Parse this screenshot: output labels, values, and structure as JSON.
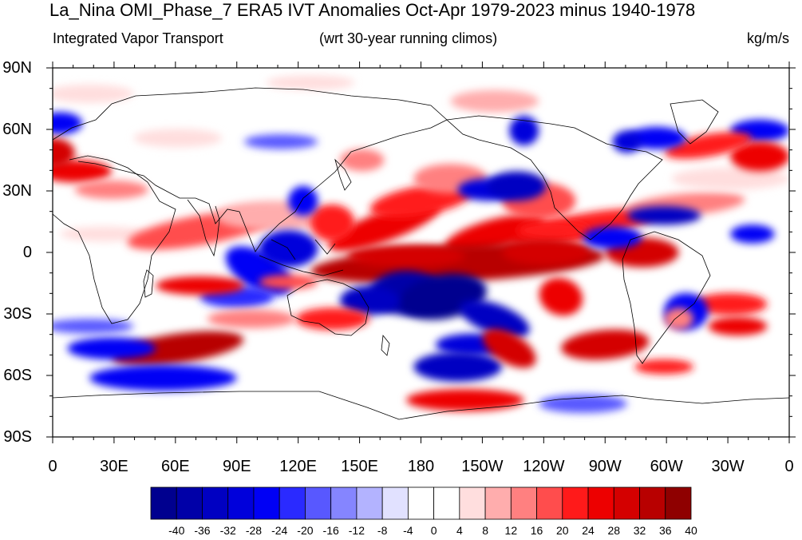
{
  "figure": {
    "title": "La_Nina OMI_Phase_7 ERA5 IVT Anomalies Oct-Apr 1979-2023 minus 1940-1978",
    "left_subtitle": "Integrated Vapor Transport",
    "center_subtitle": "(wrt 30-year running climos)",
    "right_subtitle": "kg/m/s"
  },
  "axes": {
    "y_ticks": [
      "90N",
      "60N",
      "30N",
      "0",
      "30S",
      "60S",
      "90S"
    ],
    "x_ticks": [
      "0",
      "30E",
      "60E",
      "90E",
      "120E",
      "150E",
      "180",
      "150W",
      "120W",
      "90W",
      "60W",
      "30W",
      "0"
    ]
  },
  "colorbar": {
    "labels": [
      "-40",
      "-36",
      "-32",
      "-28",
      "-24",
      "-20",
      "-16",
      "-12",
      "-8",
      "-4",
      "0",
      "4",
      "8",
      "12",
      "16",
      "20",
      "24",
      "28",
      "32",
      "36",
      "40"
    ],
    "colors": [
      "#00008f",
      "#0000a8",
      "#0000c2",
      "#0000db",
      "#0000f5",
      "#2a2aff",
      "#5858ff",
      "#8585ff",
      "#b3b3ff",
      "#e1e1ff",
      "#ffffff",
      "#ffffff",
      "#ffdede",
      "#ffadad",
      "#ff8080",
      "#ff4d4d",
      "#ff1a1a",
      "#ed0000",
      "#d40000",
      "#b80000",
      "#8f0000"
    ]
  },
  "colors": {
    "blue": "#1a1aff",
    "red": "#d90000",
    "background": "#ffffff"
  }
}
